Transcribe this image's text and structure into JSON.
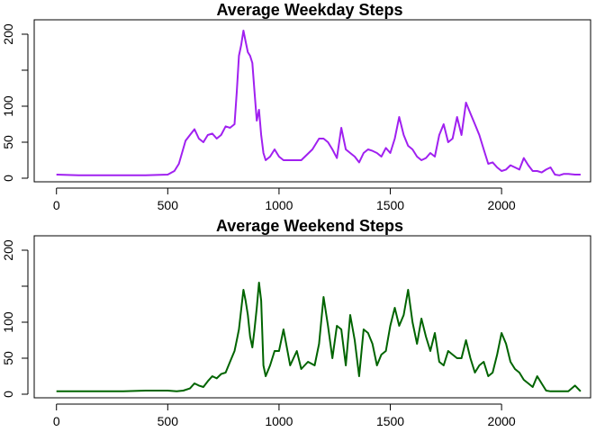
{
  "chart_data": [
    {
      "type": "line",
      "title": "Average Weekday Steps",
      "xlabel": "",
      "ylabel": "",
      "xlim": [
        -100,
        2400
      ],
      "ylim": [
        -5,
        220
      ],
      "xticks": [
        0,
        500,
        1000,
        1500,
        2000
      ],
      "yticks": [
        0,
        50,
        100,
        150,
        200
      ],
      "ytick_labels": [
        "0",
        "50",
        "100",
        "",
        "200"
      ],
      "grid": false,
      "series": [
        {
          "color": "#A020F0",
          "x": [
            0,
            100,
            200,
            300,
            400,
            500,
            530,
            550,
            580,
            600,
            620,
            640,
            660,
            680,
            700,
            720,
            740,
            760,
            780,
            800,
            810,
            820,
            830,
            840,
            850,
            860,
            870,
            880,
            890,
            900,
            910,
            920,
            930,
            940,
            960,
            980,
            1000,
            1020,
            1050,
            1100,
            1150,
            1180,
            1200,
            1220,
            1240,
            1260,
            1280,
            1300,
            1320,
            1340,
            1360,
            1380,
            1400,
            1420,
            1440,
            1460,
            1480,
            1500,
            1520,
            1540,
            1560,
            1580,
            1600,
            1620,
            1640,
            1660,
            1680,
            1700,
            1720,
            1740,
            1760,
            1780,
            1800,
            1820,
            1840,
            1860,
            1880,
            1900,
            1920,
            1940,
            1960,
            1980,
            2000,
            2020,
            2040,
            2060,
            2080,
            2100,
            2120,
            2140,
            2160,
            2180,
            2200,
            2220,
            2240,
            2260,
            2280,
            2300,
            2330,
            2355
          ],
          "y": [
            5,
            4,
            4,
            4,
            4,
            5,
            10,
            20,
            52,
            60,
            68,
            55,
            50,
            60,
            62,
            55,
            60,
            72,
            70,
            75,
            120,
            170,
            185,
            205,
            190,
            175,
            170,
            160,
            120,
            80,
            95,
            60,
            35,
            25,
            30,
            40,
            30,
            25,
            25,
            25,
            40,
            55,
            55,
            50,
            40,
            28,
            70,
            40,
            35,
            30,
            22,
            35,
            40,
            38,
            35,
            30,
            42,
            35,
            55,
            85,
            60,
            45,
            40,
            30,
            25,
            28,
            35,
            30,
            60,
            75,
            50,
            55,
            85,
            60,
            105,
            90,
            75,
            60,
            40,
            20,
            22,
            15,
            10,
            12,
            18,
            15,
            12,
            28,
            18,
            10,
            10,
            8,
            12,
            15,
            5,
            4,
            6,
            6,
            5,
            5
          ]
        }
      ]
    },
    {
      "type": "line",
      "title": "Average Weekend Steps",
      "xlabel": "",
      "ylabel": "",
      "xlim": [
        -100,
        2400
      ],
      "ylim": [
        -5,
        220
      ],
      "xticks": [
        0,
        500,
        1000,
        1500,
        2000
      ],
      "yticks": [
        0,
        50,
        100,
        150,
        200
      ],
      "ytick_labels": [
        "0",
        "50",
        "100",
        "",
        "200"
      ],
      "grid": false,
      "series": [
        {
          "color": "#006400",
          "x": [
            0,
            100,
            200,
            300,
            400,
            500,
            540,
            570,
            600,
            620,
            640,
            660,
            680,
            700,
            720,
            740,
            760,
            780,
            800,
            810,
            820,
            840,
            850,
            860,
            870,
            880,
            890,
            900,
            910,
            920,
            930,
            940,
            960,
            980,
            1000,
            1020,
            1050,
            1080,
            1100,
            1130,
            1160,
            1180,
            1200,
            1220,
            1240,
            1260,
            1280,
            1300,
            1320,
            1340,
            1360,
            1380,
            1400,
            1420,
            1440,
            1460,
            1480,
            1500,
            1520,
            1540,
            1560,
            1580,
            1600,
            1620,
            1640,
            1660,
            1680,
            1700,
            1720,
            1740,
            1760,
            1780,
            1800,
            1820,
            1840,
            1860,
            1880,
            1900,
            1920,
            1940,
            1960,
            1980,
            2000,
            2020,
            2040,
            2060,
            2080,
            2100,
            2120,
            2140,
            2160,
            2180,
            2200,
            2220,
            2240,
            2260,
            2280,
            2300,
            2330,
            2355
          ],
          "y": [
            4,
            4,
            4,
            4,
            5,
            5,
            4,
            5,
            8,
            15,
            12,
            10,
            18,
            25,
            22,
            28,
            30,
            45,
            60,
            75,
            90,
            145,
            130,
            110,
            80,
            65,
            90,
            120,
            155,
            130,
            40,
            25,
            40,
            60,
            60,
            90,
            40,
            60,
            35,
            45,
            40,
            70,
            135,
            95,
            50,
            95,
            90,
            40,
            110,
            75,
            25,
            90,
            85,
            70,
            40,
            55,
            60,
            95,
            120,
            95,
            110,
            145,
            100,
            70,
            105,
            80,
            60,
            85,
            45,
            40,
            60,
            55,
            50,
            50,
            75,
            50,
            30,
            40,
            45,
            25,
            30,
            55,
            85,
            70,
            45,
            35,
            30,
            20,
            15,
            10,
            25,
            15,
            5,
            4,
            4,
            4,
            4,
            4,
            12,
            4
          ]
        }
      ]
    }
  ]
}
